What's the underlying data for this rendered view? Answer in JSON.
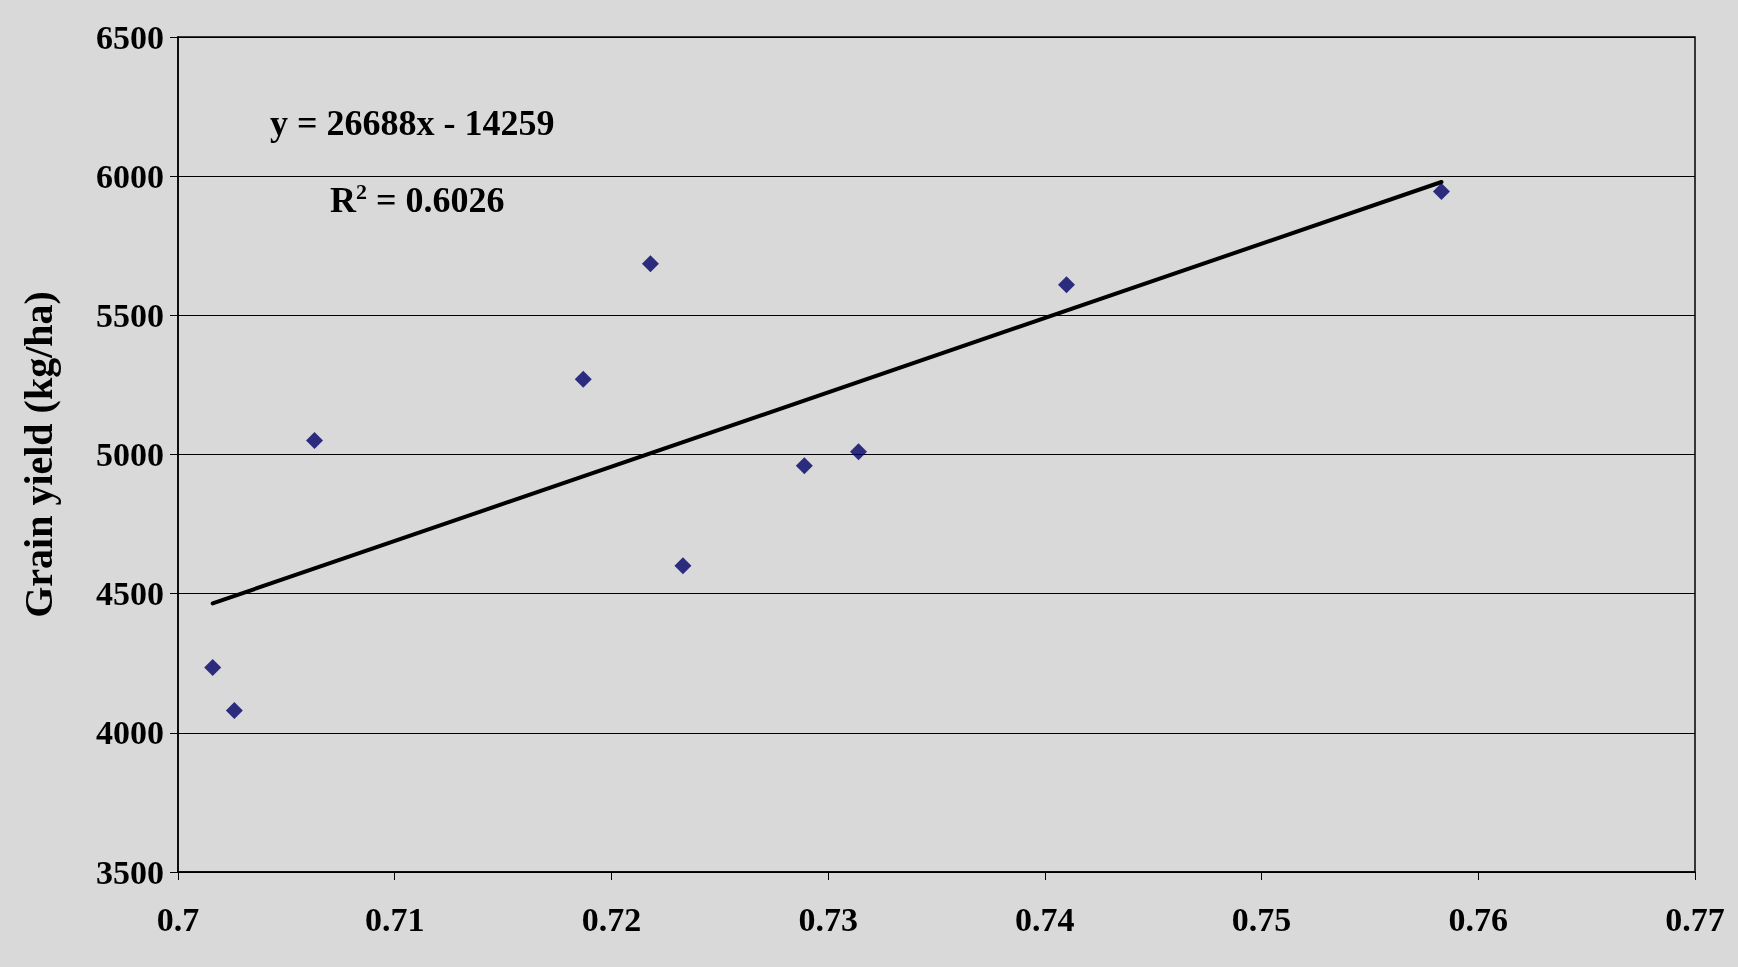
{
  "chart_data": {
    "type": "scatter",
    "ylabel": "Grain yield (kg/ha)",
    "annotations": [
      "y = 26688x - 14259",
      "R$^{2}$ = 0.6026"
    ],
    "series": [
      {
        "type": "scatter",
        "color": "#000066",
        "marker": "diamond",
        "x": [
          0.7016,
          0.7026,
          0.7063,
          0.7187,
          0.7218,
          0.7233,
          0.7289,
          0.7314,
          0.741,
          0.7583
        ],
        "values": [
          4235,
          4080,
          5050,
          5270,
          5685,
          4600,
          4960,
          5010,
          5610,
          5945
        ]
      },
      {
        "type": "line",
        "color": "#000000",
        "marker": "none",
        "line_style": "solid",
        "x": [
          0.7016,
          0.7583
        ],
        "values": [
          4465,
          5979
        ]
      }
    ],
    "xlim": [
      0.7,
      0.77
    ],
    "xticks": [
      0.7,
      0.71,
      0.72,
      0.73,
      0.74,
      0.75,
      0.76,
      0.77
    ],
    "ylim": [
      3500,
      6500
    ],
    "yticks": [
      3500,
      4000,
      4500,
      5000,
      5500,
      6000,
      6500
    ],
    "grid": "y"
  }
}
